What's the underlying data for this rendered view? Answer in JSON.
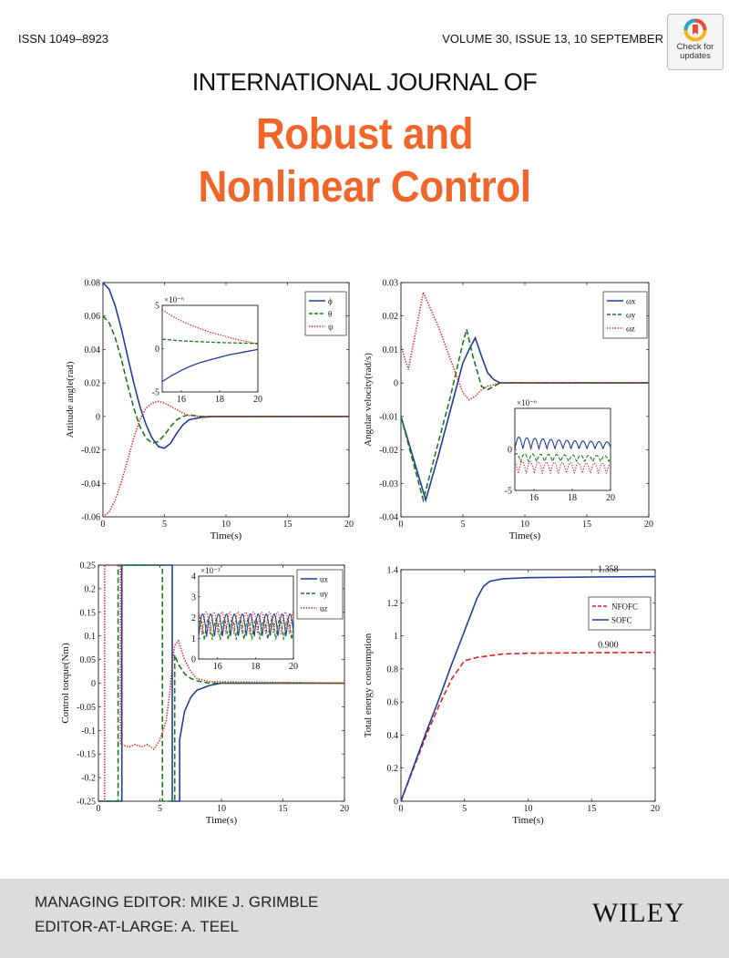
{
  "header": {
    "issn": "ISSN 1049–8923",
    "volume": "VOLUME 30, ISSUE 13, 10 SEPTEMBER",
    "badge_line1": "Check for",
    "badge_line2": "updates",
    "journal_top": "INTERNATIONAL JOURNAL OF",
    "title_line1": "Robust and",
    "title_line2": "Nonlinear Control"
  },
  "footer": {
    "managing_editor": "MANAGING EDITOR: MIKE J. GRIMBLE",
    "editor_at_large": "EDITOR-AT-LARGE: A. TEEL",
    "publisher": "WILEY"
  },
  "colors": {
    "accent": "#f0662a",
    "blue": "#1f3d99",
    "green": "#1a7a1a",
    "red": "#dd2020"
  },
  "chart_data": [
    {
      "type": "line",
      "id": "attitude",
      "xlabel": "Time(s)",
      "ylabel": "Attitude angle(rad)",
      "xlim": [
        0,
        20
      ],
      "ylim": [
        -0.06,
        0.08
      ],
      "xticks": [
        0,
        5,
        10,
        15,
        20
      ],
      "yticks": [
        -0.06,
        -0.04,
        -0.02,
        0,
        0.02,
        0.04,
        0.06,
        0.08
      ],
      "ytick_labels": [
        "-0.06",
        "-0.04",
        "-0.02",
        "0",
        "0.02",
        "0.04",
        "0.06",
        "0.08"
      ],
      "legend": [
        "ϕ",
        "θ",
        "ψ"
      ],
      "series": [
        {
          "name": "ϕ",
          "color": "blue",
          "dash": "solid",
          "x": [
            0,
            0.5,
            1,
            1.5,
            2,
            2.5,
            3,
            3.5,
            4,
            4.5,
            5,
            5.5,
            6,
            6.5,
            7,
            8,
            9,
            10,
            20
          ],
          "y": [
            0.08,
            0.076,
            0.066,
            0.052,
            0.036,
            0.02,
            0.006,
            -0.005,
            -0.013,
            -0.018,
            -0.019,
            -0.016,
            -0.01,
            -0.005,
            -0.002,
            -0.0005,
            0,
            0,
            0
          ]
        },
        {
          "name": "θ",
          "color": "green",
          "dash": "dash",
          "x": [
            0,
            0.5,
            1,
            1.5,
            2,
            2.5,
            3,
            3.5,
            4,
            4.5,
            5,
            5.5,
            6,
            6.5,
            7,
            8,
            9,
            20
          ],
          "y": [
            0.06,
            0.056,
            0.047,
            0.034,
            0.019,
            0.005,
            -0.006,
            -0.013,
            -0.016,
            -0.015,
            -0.011,
            -0.006,
            -0.002,
            0,
            0.001,
            0,
            0,
            0
          ]
        },
        {
          "name": "ψ",
          "color": "red",
          "dash": "dot",
          "x": [
            0,
            0.5,
            1,
            1.5,
            2,
            2.5,
            3,
            3.5,
            4,
            4.5,
            5,
            5.5,
            6,
            6.5,
            7,
            8,
            9,
            20
          ],
          "y": [
            -0.06,
            -0.057,
            -0.05,
            -0.039,
            -0.026,
            -0.013,
            -0.002,
            0.005,
            0.008,
            0.009,
            0.008,
            0.006,
            0.004,
            0.002,
            0.0005,
            0,
            0,
            0
          ]
        }
      ],
      "inset": {
        "xlim": [
          15,
          20
        ],
        "ylim": [
          -5,
          5
        ],
        "xticks": [
          16,
          18,
          20
        ],
        "yticks": [
          -5,
          0,
          5
        ],
        "exponent": "×10⁻⁶",
        "series": [
          {
            "color": "blue",
            "dash": "solid",
            "x": [
              15,
              15.5,
              16,
              16.5,
              17,
              17.5,
              18,
              18.5,
              19,
              19.5,
              20
            ],
            "y": [
              -3.8,
              -3.1,
              -2.5,
              -2.0,
              -1.6,
              -1.3,
              -1.0,
              -0.7,
              -0.5,
              -0.3,
              -0.1
            ]
          },
          {
            "color": "green",
            "dash": "dash",
            "x": [
              15,
              16,
              17,
              18,
              19,
              20
            ],
            "y": [
              1.1,
              0.9,
              0.8,
              0.7,
              0.65,
              0.6
            ]
          },
          {
            "color": "red",
            "dash": "dot",
            "x": [
              15,
              15.5,
              16,
              16.5,
              17,
              17.5,
              18,
              18.5,
              19,
              19.5,
              20
            ],
            "y": [
              4.5,
              3.8,
              3.2,
              2.7,
              2.3,
              1.9,
              1.6,
              1.3,
              1.0,
              0.8,
              0.5
            ]
          }
        ]
      }
    },
    {
      "type": "line",
      "id": "angular-velocity",
      "xlabel": "Time(s)",
      "ylabel": "Angular velocity(rad/s)",
      "xlim": [
        0,
        20
      ],
      "ylim": [
        -0.04,
        0.03
      ],
      "xticks": [
        0,
        5,
        10,
        15,
        20
      ],
      "yticks": [
        -0.04,
        -0.03,
        -0.02,
        -0.01,
        0,
        0.01,
        0.02,
        0.03
      ],
      "ytick_labels": [
        "-0.04",
        "-0.03",
        "-0.02",
        "-0.01",
        "0",
        "0.01",
        "0.02",
        "0.03"
      ],
      "legend": [
        "ωx",
        "ωy",
        "ωz"
      ],
      "series": [
        {
          "name": "ωx",
          "color": "blue",
          "dash": "solid",
          "x": [
            0,
            2,
            3,
            4,
            5,
            5.5,
            6,
            6.5,
            7,
            7.5,
            8,
            9,
            10,
            20
          ],
          "y": [
            -0.01,
            -0.035,
            -0.022,
            -0.008,
            0.006,
            0.01,
            0.0135,
            0.008,
            0.003,
            0.001,
            0,
            0,
            0,
            0
          ]
        },
        {
          "name": "ωy",
          "color": "green",
          "dash": "dash",
          "x": [
            0,
            1.8,
            3,
            4,
            5,
            5.3,
            5.8,
            6.5,
            7,
            8,
            9,
            20
          ],
          "y": [
            -0.01,
            -0.035,
            -0.018,
            -0.004,
            0.012,
            0.016,
            0.008,
            -0.001,
            -0.002,
            0,
            0,
            0
          ]
        },
        {
          "name": "ωz",
          "color": "red",
          "dash": "dot",
          "x": [
            0,
            0.6,
            1.8,
            3,
            4,
            5,
            5.5,
            6,
            6.5,
            7,
            8,
            9,
            20
          ],
          "y": [
            0.011,
            0.004,
            0.027,
            0.017,
            0.007,
            -0.003,
            -0.005,
            -0.004,
            -0.002,
            -0.001,
            0,
            0,
            0
          ]
        }
      ],
      "inset": {
        "xlim": [
          15,
          20
        ],
        "ylim": [
          -5,
          5
        ],
        "xticks": [
          16,
          18,
          20
        ],
        "yticks": [
          -5,
          0
        ],
        "exponent": "×10⁻⁶",
        "osc": [
          {
            "color": "blue",
            "dash": "solid",
            "base": 0.5,
            "amp": 1.5,
            "decay": 1.0
          },
          {
            "color": "green",
            "dash": "dash",
            "base": -1.2,
            "amp": 1.0,
            "decay": 0.5
          },
          {
            "color": "red",
            "dash": "dot",
            "base": -2.5,
            "amp": 1.5,
            "decay": 0.3
          }
        ]
      }
    },
    {
      "type": "line",
      "id": "control-torque",
      "xlabel": "Time(s)",
      "ylabel": "Control torque(Nm)",
      "xlim": [
        0,
        20
      ],
      "ylim": [
        -0.25,
        0.25
      ],
      "xticks": [
        0,
        5,
        10,
        15,
        20
      ],
      "yticks": [
        -0.25,
        -0.2,
        -0.15,
        -0.1,
        -0.05,
        0,
        0.05,
        0.1,
        0.15,
        0.2,
        0.25
      ],
      "ytick_labels": [
        "-0.25",
        "-0.2",
        "-0.15",
        "-0.1",
        "-0.05",
        "0",
        "0.05",
        "0.1",
        "0.15",
        "0.2",
        "0.25"
      ],
      "legend": [
        "ux",
        "uy",
        "uz"
      ],
      "series": [
        {
          "name": "ux",
          "color": "blue",
          "dash": "solid",
          "x": [
            0,
            1.9,
            1.9,
            6,
            6,
            6.6,
            6.6,
            7,
            7.5,
            8,
            9,
            10,
            20
          ],
          "y": [
            -0.25,
            -0.25,
            0.25,
            0.25,
            -0.25,
            -0.25,
            -0.12,
            -0.06,
            -0.03,
            -0.015,
            -0.005,
            0,
            0
          ]
        },
        {
          "name": "uy",
          "color": "green",
          "dash": "dash",
          "x": [
            0,
            1.6,
            1.6,
            5.2,
            5.2,
            6.2,
            6.2,
            6.5,
            7,
            7.5,
            8,
            9,
            20
          ],
          "y": [
            -0.25,
            -0.25,
            0.25,
            0.25,
            -0.25,
            -0.25,
            0.06,
            0.04,
            0.02,
            0.01,
            0.005,
            0,
            0
          ]
        },
        {
          "name": "uz",
          "color": "red",
          "dash": "dot",
          "x": [
            0,
            0.5,
            0.5,
            1.8,
            1.8,
            2.5,
            3,
            3.5,
            4,
            4.5,
            5,
            5.5,
            5.8,
            6,
            6.2,
            6.5,
            7,
            7.5,
            8,
            9,
            20
          ],
          "y": [
            -0.25,
            -0.25,
            0.25,
            0.25,
            -0.13,
            -0.135,
            -0.13,
            -0.135,
            -0.13,
            -0.14,
            -0.12,
            -0.08,
            -0.02,
            0.04,
            0.08,
            0.09,
            0.05,
            0.025,
            0.01,
            0.003,
            0
          ]
        }
      ],
      "inset": {
        "xlim": [
          15,
          20
        ],
        "ylim": [
          0,
          4
        ],
        "xticks": [
          16,
          18,
          20
        ],
        "yticks": [
          0,
          1,
          2,
          3,
          4
        ],
        "exponent": "×10⁻³",
        "osc": [
          {
            "color": "blue",
            "dash": "solid",
            "base": 1.4,
            "amp": 1.1,
            "decay": 0
          },
          {
            "color": "green",
            "dash": "dash",
            "base": 1.2,
            "amp": 1.0,
            "decay": 0
          },
          {
            "color": "red",
            "dash": "dot",
            "base": 1.5,
            "amp": 1.1,
            "decay": 0
          }
        ]
      }
    },
    {
      "type": "line",
      "id": "energy",
      "xlabel": "Time(s)",
      "ylabel": "Total energy consumption",
      "xlim": [
        0,
        20
      ],
      "ylim": [
        0,
        1.4
      ],
      "xticks": [
        0,
        5,
        10,
        15,
        20
      ],
      "yticks": [
        0,
        0.2,
        0.4,
        0.6,
        0.8,
        1,
        1.2,
        1.4
      ],
      "ytick_labels": [
        "0",
        "0.2",
        "0.4",
        "0.6",
        "0.8",
        "1",
        "1.2",
        "1.4"
      ],
      "legend": [
        "NFOFC",
        "SOFC"
      ],
      "annotations": [
        {
          "text": "1.358",
          "x": 16.3,
          "y": 1.358
        },
        {
          "text": "0.900",
          "x": 16.3,
          "y": 0.9
        }
      ],
      "series": [
        {
          "name": "NFOFC",
          "color": "red",
          "dash": "dash",
          "x": [
            0,
            1,
            2,
            3,
            4,
            5,
            6,
            8,
            10,
            15,
            20
          ],
          "y": [
            0,
            0.2,
            0.4,
            0.58,
            0.74,
            0.85,
            0.87,
            0.89,
            0.895,
            0.898,
            0.9
          ]
        },
        {
          "name": "SOFC",
          "color": "blue",
          "dash": "solid",
          "x": [
            0,
            1,
            2,
            3,
            4,
            5,
            6,
            6.5,
            7,
            8,
            10,
            15,
            20
          ],
          "y": [
            0,
            0.21,
            0.42,
            0.62,
            0.83,
            1.03,
            1.23,
            1.3,
            1.33,
            1.345,
            1.352,
            1.356,
            1.358
          ]
        }
      ]
    }
  ]
}
